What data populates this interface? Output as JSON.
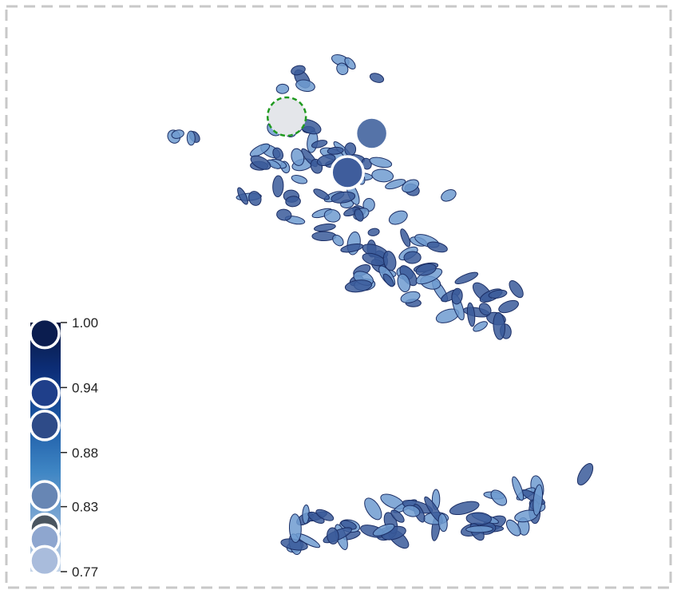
{
  "chart_data": {
    "type": "scatter",
    "title": "",
    "xlabel": "",
    "ylabel": "",
    "grid": false,
    "legend": "colorbar bottom-left",
    "colorbar": {
      "min": 0.77,
      "max": 1.0,
      "ticks": [
        "1.00",
        "0.94",
        "0.88",
        "0.83",
        "0.77"
      ],
      "tick_values": [
        1.0,
        0.94,
        0.88,
        0.83,
        0.77
      ],
      "colors": [
        "#c6d6ea",
        "#7fa8d3",
        "#3f86c4",
        "#1c5aa6",
        "#0d2f7a",
        "#08173f"
      ]
    },
    "highlighted_markers": [
      {
        "value": 0.99,
        "color": "#0b1d4f"
      },
      {
        "value": 0.935,
        "color": "#1f3f8a"
      },
      {
        "value": 0.905,
        "color": "#2e4b88"
      },
      {
        "value": 0.84,
        "color": "#6786b4"
      },
      {
        "value": 0.81,
        "color": "#4a5560"
      },
      {
        "value": 0.8,
        "color": "#8ea6cf"
      },
      {
        "value": 0.78,
        "color": "#a9bcdc"
      }
    ],
    "plot_markers": [
      {
        "x": 0.42,
        "y": 0.82,
        "color": "#e4e6ea",
        "outline": "dashed-green"
      },
      {
        "x": 0.56,
        "y": 0.79,
        "color": "#5573a8",
        "outline": "white"
      },
      {
        "x": 0.52,
        "y": 0.72,
        "color": "#3f5d9c",
        "outline": "white"
      }
    ],
    "colors": {
      "marker_fill": "#3a5a9a",
      "marker_fill_light": "#6f9bd0",
      "marker_stroke": "#1c2f66",
      "frame": "#c8c8c8"
    }
  }
}
